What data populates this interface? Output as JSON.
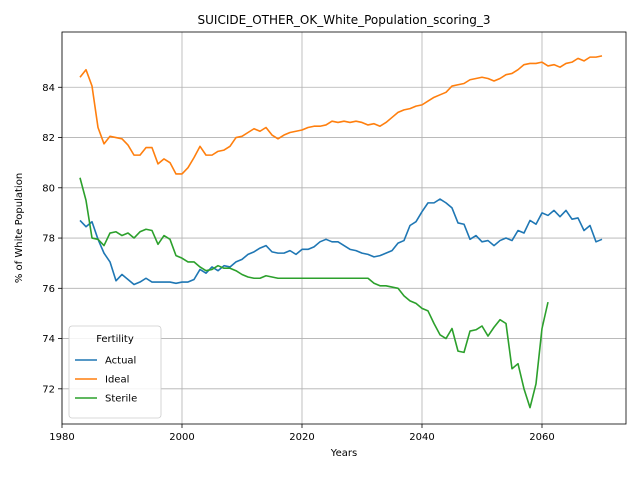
{
  "chart_data": {
    "type": "line",
    "title": "SUICIDE_OTHER_OK_White_Population_scoring_3",
    "xlabel": "Years",
    "ylabel": "% of White Population",
    "xlim": [
      1980,
      2074
    ],
    "ylim": [
      70.6,
      86.2
    ],
    "xticks": [
      1980,
      2000,
      2020,
      2040,
      2060
    ],
    "yticks": [
      72,
      74,
      76,
      78,
      80,
      82,
      84
    ],
    "grid": true,
    "legend": {
      "title": "Fertility",
      "placement": "lower-left"
    },
    "series": [
      {
        "name": "Actual",
        "color": "#1f77b4",
        "x": [
          1983,
          1984,
          1985,
          1986,
          1987,
          1988,
          1989,
          1990,
          1991,
          1992,
          1993,
          1994,
          1995,
          1996,
          1997,
          1998,
          1999,
          2000,
          2001,
          2002,
          2003,
          2004,
          2005,
          2006,
          2007,
          2008,
          2009,
          2010,
          2011,
          2012,
          2013,
          2014,
          2015,
          2016,
          2017,
          2018,
          2019,
          2020,
          2021,
          2022,
          2023,
          2024,
          2025,
          2026,
          2027,
          2028,
          2029,
          2030,
          2031,
          2032,
          2033,
          2034,
          2035,
          2036,
          2037,
          2038,
          2039,
          2040,
          2041,
          2042,
          2043,
          2044,
          2045,
          2046,
          2047,
          2048,
          2049,
          2050,
          2051,
          2052,
          2053,
          2054,
          2055,
          2056,
          2057,
          2058,
          2059,
          2060,
          2061,
          2062,
          2063,
          2064,
          2065,
          2066,
          2067,
          2068,
          2069,
          2070
        ],
        "values": [
          78.7,
          78.45,
          78.65,
          77.95,
          77.4,
          77.05,
          76.3,
          76.55,
          76.35,
          76.15,
          76.25,
          76.4,
          76.25,
          76.25,
          76.25,
          76.25,
          76.2,
          76.25,
          76.25,
          76.35,
          76.75,
          76.6,
          76.85,
          76.7,
          76.9,
          76.85,
          77.05,
          77.15,
          77.35,
          77.45,
          77.6,
          77.7,
          77.45,
          77.4,
          77.4,
          77.5,
          77.35,
          77.55,
          77.55,
          77.65,
          77.85,
          77.95,
          77.85,
          77.85,
          77.7,
          77.55,
          77.5,
          77.4,
          77.35,
          77.25,
          77.3,
          77.4,
          77.5,
          77.8,
          77.9,
          78.5,
          78.65,
          79.05,
          79.4,
          79.4,
          79.55,
          79.4,
          79.2,
          78.6,
          78.55,
          77.95,
          78.1,
          77.85,
          77.9,
          77.7,
          77.9,
          78.0,
          77.9,
          78.3,
          78.2,
          78.7,
          78.55,
          79.0,
          78.9,
          79.1,
          78.85,
          79.1,
          78.75,
          78.8,
          78.3,
          78.5,
          77.85,
          77.95
        ]
      },
      {
        "name": "Ideal",
        "color": "#ff7f0e",
        "x": [
          1983,
          1984,
          1985,
          1986,
          1987,
          1988,
          1989,
          1990,
          1991,
          1992,
          1993,
          1994,
          1995,
          1996,
          1997,
          1998,
          1999,
          2000,
          2001,
          2002,
          2003,
          2004,
          2005,
          2006,
          2007,
          2008,
          2009,
          2010,
          2011,
          2012,
          2013,
          2014,
          2015,
          2016,
          2017,
          2018,
          2019,
          2020,
          2021,
          2022,
          2023,
          2024,
          2025,
          2026,
          2027,
          2028,
          2029,
          2030,
          2031,
          2032,
          2033,
          2034,
          2035,
          2036,
          2037,
          2038,
          2039,
          2040,
          2041,
          2042,
          2043,
          2044,
          2045,
          2046,
          2047,
          2048,
          2049,
          2050,
          2051,
          2052,
          2053,
          2054,
          2055,
          2056,
          2057,
          2058,
          2059,
          2060,
          2061,
          2062,
          2063,
          2064,
          2065,
          2066,
          2067,
          2068,
          2069,
          2070
        ],
        "values": [
          84.4,
          84.7,
          84.05,
          82.4,
          81.75,
          82.05,
          82.0,
          81.95,
          81.7,
          81.3,
          81.3,
          81.6,
          81.6,
          80.95,
          81.15,
          81.0,
          80.55,
          80.55,
          80.8,
          81.2,
          81.65,
          81.3,
          81.3,
          81.45,
          81.5,
          81.65,
          82.0,
          82.05,
          82.2,
          82.35,
          82.25,
          82.4,
          82.1,
          81.95,
          82.1,
          82.2,
          82.25,
          82.3,
          82.4,
          82.45,
          82.45,
          82.5,
          82.65,
          82.6,
          82.65,
          82.6,
          82.65,
          82.6,
          82.5,
          82.55,
          82.45,
          82.6,
          82.8,
          83.0,
          83.1,
          83.15,
          83.25,
          83.3,
          83.45,
          83.6,
          83.7,
          83.8,
          84.05,
          84.1,
          84.15,
          84.3,
          84.35,
          84.4,
          84.35,
          84.25,
          84.35,
          84.5,
          84.55,
          84.7,
          84.9,
          84.95,
          84.95,
          85.0,
          84.85,
          84.9,
          84.8,
          84.95,
          85.0,
          85.15,
          85.05,
          85.2,
          85.2,
          85.25
        ]
      },
      {
        "name": "Sterile",
        "color": "#2ca02c",
        "x": [
          1983,
          1984,
          1985,
          1986,
          1987,
          1988,
          1989,
          1990,
          1991,
          1992,
          1993,
          1994,
          1995,
          1996,
          1997,
          1998,
          1999,
          2000,
          2001,
          2002,
          2003,
          2004,
          2005,
          2006,
          2007,
          2008,
          2009,
          2010,
          2011,
          2012,
          2013,
          2014,
          2015,
          2016,
          2017,
          2018,
          2019,
          2020,
          2021,
          2022,
          2023,
          2024,
          2025,
          2026,
          2027,
          2028,
          2029,
          2030,
          2031,
          2032,
          2033,
          2034,
          2035,
          2036,
          2037,
          2038,
          2039,
          2040,
          2041,
          2042,
          2043,
          2044,
          2045,
          2046,
          2047,
          2048,
          2049,
          2050,
          2051,
          2052,
          2053,
          2054,
          2055,
          2056,
          2057,
          2058,
          2059,
          2060,
          2061
        ],
        "values": [
          80.4,
          79.5,
          78.0,
          77.95,
          77.7,
          78.2,
          78.25,
          78.1,
          78.2,
          78.0,
          78.25,
          78.35,
          78.3,
          77.75,
          78.1,
          77.95,
          77.3,
          77.2,
          77.05,
          77.05,
          76.85,
          76.7,
          76.75,
          76.9,
          76.8,
          76.8,
          76.7,
          76.55,
          76.45,
          76.4,
          76.4,
          76.5,
          76.45,
          76.4,
          76.4,
          76.4,
          76.4,
          76.4,
          76.4,
          76.4,
          76.4,
          76.4,
          76.4,
          76.4,
          76.4,
          76.4,
          76.4,
          76.4,
          76.4,
          76.2,
          76.1,
          76.1,
          76.05,
          76.0,
          75.7,
          75.5,
          75.4,
          75.2,
          75.1,
          74.6,
          74.15,
          74.0,
          74.4,
          73.5,
          73.45,
          74.3,
          74.35,
          74.5,
          74.1,
          74.45,
          74.75,
          74.6,
          72.8,
          73.0,
          72.0,
          71.25,
          72.2,
          74.4,
          75.45
        ]
      }
    ]
  }
}
